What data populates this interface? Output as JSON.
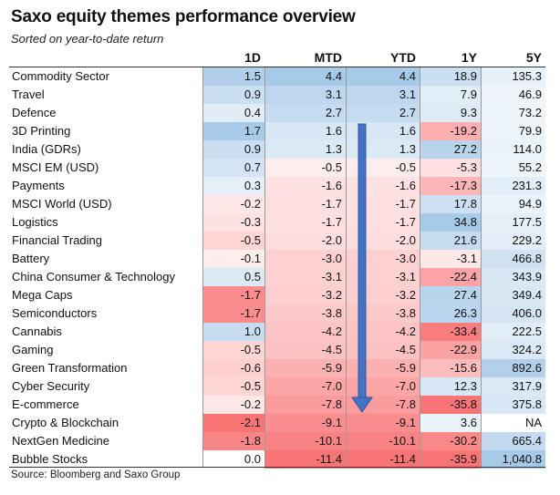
{
  "title": "Saxo equity themes performance overview",
  "subtitle": "Sorted on year-to-date return",
  "source": "Source: Bloomberg and Saxo Group",
  "columns": [
    "1D",
    "MTD",
    "YTD",
    "1Y",
    "5Y"
  ],
  "chart_data": {
    "type": "table",
    "title": "Saxo equity themes performance overview",
    "subtitle": "Sorted on year-to-date return",
    "columns": [
      "1D",
      "MTD",
      "YTD",
      "1Y",
      "5Y"
    ],
    "rows": [
      {
        "name": "Commodity Sector",
        "values": [
          "1.5",
          "4.4",
          "4.4",
          "18.9",
          "135.3"
        ]
      },
      {
        "name": "Travel",
        "values": [
          "0.9",
          "3.1",
          "3.1",
          "7.9",
          "46.9"
        ]
      },
      {
        "name": "Defence",
        "values": [
          "0.4",
          "2.7",
          "2.7",
          "9.3",
          "73.2"
        ]
      },
      {
        "name": "3D Printing",
        "values": [
          "1.7",
          "1.6",
          "1.6",
          "-19.2",
          "79.9"
        ]
      },
      {
        "name": "India (GDRs)",
        "values": [
          "0.9",
          "1.3",
          "1.3",
          "27.2",
          "114.0"
        ]
      },
      {
        "name": "MSCI EM (USD)",
        "values": [
          "0.7",
          "-0.5",
          "-0.5",
          "-5.3",
          "55.2"
        ]
      },
      {
        "name": "Payments",
        "values": [
          "0.3",
          "-1.6",
          "-1.6",
          "-17.3",
          "231.3"
        ]
      },
      {
        "name": "MSCI World (USD)",
        "values": [
          "-0.2",
          "-1.7",
          "-1.7",
          "17.8",
          "94.9"
        ]
      },
      {
        "name": "Logistics",
        "values": [
          "-0.3",
          "-1.7",
          "-1.7",
          "34.8",
          "177.5"
        ]
      },
      {
        "name": "Financial Trading",
        "values": [
          "-0.5",
          "-2.0",
          "-2.0",
          "21.6",
          "229.2"
        ]
      },
      {
        "name": "Battery",
        "values": [
          "-0.1",
          "-3.0",
          "-3.0",
          "-3.1",
          "466.8"
        ]
      },
      {
        "name": "China Consumer & Technology",
        "values": [
          "0.5",
          "-3.1",
          "-3.1",
          "-22.4",
          "343.9"
        ]
      },
      {
        "name": "Mega Caps",
        "values": [
          "-1.7",
          "-3.2",
          "-3.2",
          "27.4",
          "349.4"
        ]
      },
      {
        "name": "Semiconductors",
        "values": [
          "-1.7",
          "-3.8",
          "-3.8",
          "26.3",
          "406.0"
        ]
      },
      {
        "name": "Cannabis",
        "values": [
          "1.0",
          "-4.2",
          "-4.2",
          "-33.4",
          "222.5"
        ]
      },
      {
        "name": "Gaming",
        "values": [
          "-0.5",
          "-4.5",
          "-4.5",
          "-22.9",
          "324.2"
        ]
      },
      {
        "name": "Green Transformation",
        "values": [
          "-0.6",
          "-5.9",
          "-5.9",
          "-15.6",
          "892.6"
        ]
      },
      {
        "name": "Cyber Security",
        "values": [
          "-0.5",
          "-7.0",
          "-7.0",
          "12.3",
          "317.9"
        ]
      },
      {
        "name": "E-commerce",
        "values": [
          "-0.2",
          "-7.8",
          "-7.8",
          "-35.8",
          "375.8"
        ]
      },
      {
        "name": "Crypto & Blockchain",
        "values": [
          "-2.1",
          "-9.1",
          "-9.1",
          "3.6",
          "NA"
        ]
      },
      {
        "name": "NextGen Medicine",
        "values": [
          "-1.8",
          "-10.1",
          "-10.1",
          "-30.2",
          "665.4"
        ]
      },
      {
        "name": "Bubble Stocks",
        "values": [
          "0.0",
          "-11.4",
          "-11.4",
          "-35.9",
          "1,040.8"
        ]
      }
    ],
    "colors": {
      "positive": "#5b9bd5",
      "negative": "#f8696b",
      "neutral": "#ffffff",
      "arrow": "#4472c4"
    },
    "annotation": "downward arrow over YTD column indicating sort order"
  }
}
